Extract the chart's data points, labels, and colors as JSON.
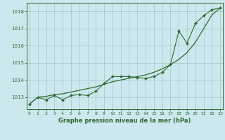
{
  "title": "Graphe pression niveau de la mer (hPa)",
  "bg_color": "#cce8ee",
  "grid_color": "#aacccc",
  "line_color": "#2d6a2d",
  "x_ticks": [
    0,
    1,
    2,
    3,
    4,
    5,
    6,
    7,
    8,
    9,
    10,
    11,
    12,
    13,
    14,
    15,
    16,
    17,
    18,
    19,
    20,
    21,
    22,
    23
  ],
  "y_ticks": [
    1013,
    1014,
    1015,
    1016,
    1017,
    1018
  ],
  "ylim": [
    1012.3,
    1018.5
  ],
  "xlim": [
    -0.3,
    23.3
  ],
  "series1_x": [
    0,
    1,
    2,
    3,
    4,
    5,
    6,
    7,
    8,
    9,
    10,
    11,
    12,
    13,
    14,
    15,
    16,
    17,
    18,
    19,
    20,
    21,
    22,
    23
  ],
  "series1_y": [
    1012.6,
    1013.0,
    1013.05,
    1013.15,
    1013.2,
    1013.3,
    1013.4,
    1013.5,
    1013.6,
    1013.75,
    1013.9,
    1014.0,
    1014.1,
    1014.2,
    1014.3,
    1014.45,
    1014.65,
    1014.9,
    1015.2,
    1015.6,
    1016.2,
    1017.0,
    1017.8,
    1018.2
  ],
  "series2_x": [
    0,
    1,
    2,
    3,
    4,
    5,
    6,
    7,
    8,
    9,
    10,
    11,
    12,
    13,
    14,
    15,
    16,
    17,
    18,
    19,
    20,
    21,
    22,
    23
  ],
  "series2_y": [
    1012.6,
    1013.0,
    1012.85,
    1013.1,
    1012.85,
    1013.1,
    1013.15,
    1013.1,
    1013.35,
    1013.8,
    1014.2,
    1014.2,
    1014.2,
    1014.15,
    1014.1,
    1014.2,
    1014.45,
    1014.9,
    1016.85,
    1016.15,
    1017.3,
    1017.75,
    1018.1,
    1018.2
  ]
}
